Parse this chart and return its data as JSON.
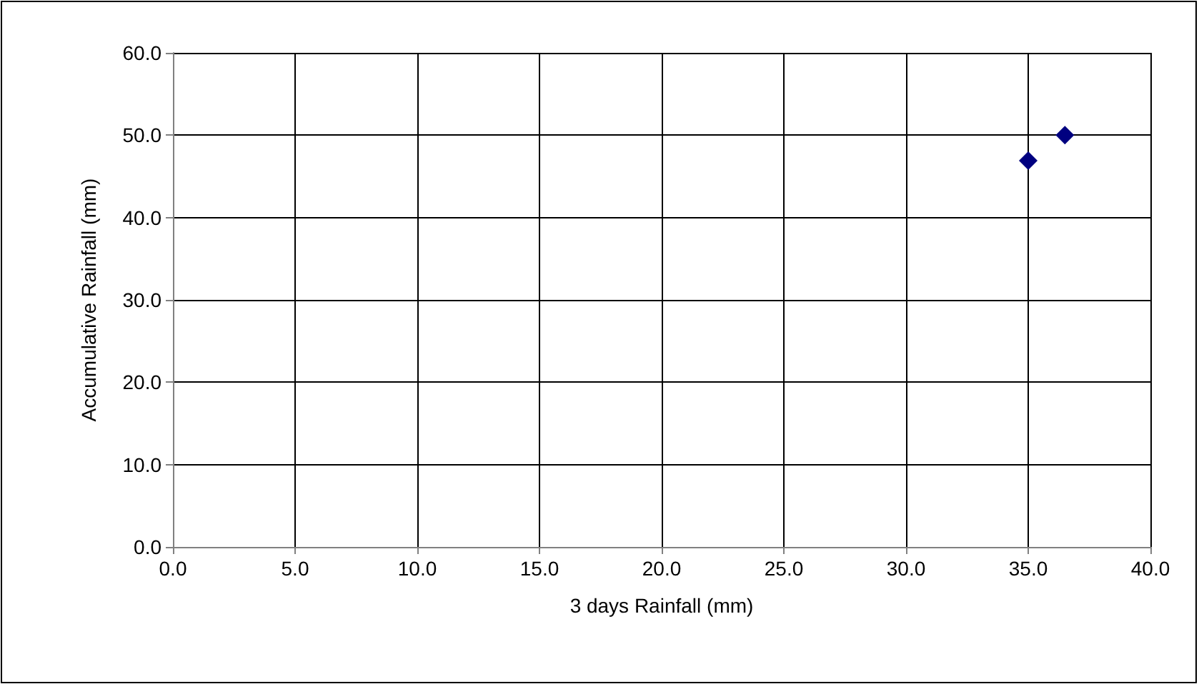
{
  "chart_data": {
    "type": "scatter",
    "xlabel": "3 days Rainfall (mm)",
    "ylabel": "Accumulative Rainfall (mm)",
    "x": [
      35.0,
      36.5
    ],
    "series": [
      {
        "color": "#000080",
        "values": [
          46.9,
          50.0
        ]
      }
    ],
    "xlim": [
      0,
      40
    ],
    "xticks": [
      {
        "value": 0,
        "label": "0.0"
      },
      {
        "value": 5,
        "label": "5.0"
      },
      {
        "value": 10,
        "label": "10.0"
      },
      {
        "value": 15,
        "label": "15.0"
      },
      {
        "value": 20,
        "label": "20.0"
      },
      {
        "value": 25,
        "label": "25.0"
      },
      {
        "value": 30,
        "label": "30.0"
      },
      {
        "value": 35,
        "label": "35.0"
      },
      {
        "value": 40,
        "label": "40.0"
      }
    ],
    "ylim": [
      0,
      60
    ],
    "yticks": [
      {
        "value": 0,
        "label": "0.0"
      },
      {
        "value": 10,
        "label": "10.0"
      },
      {
        "value": 20,
        "label": "20.0"
      },
      {
        "value": 30,
        "label": "30.0"
      },
      {
        "value": 40,
        "label": "40.0"
      },
      {
        "value": 50,
        "label": "50.0"
      },
      {
        "value": 60,
        "label": "60.0"
      }
    ],
    "grid": true,
    "marker": "diamond"
  }
}
